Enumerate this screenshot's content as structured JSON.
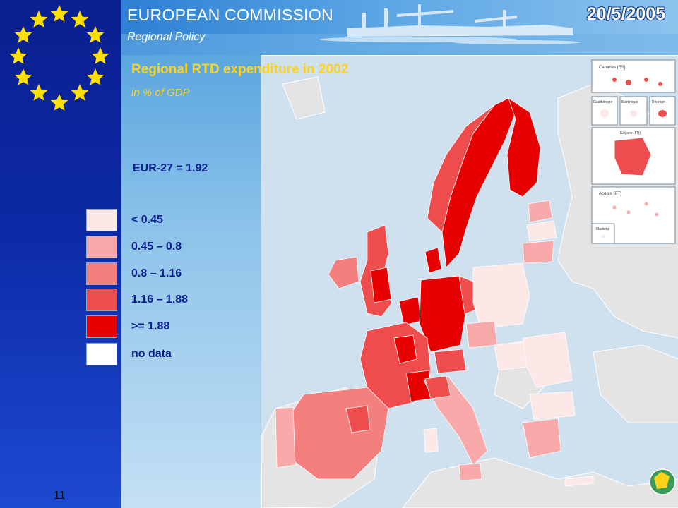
{
  "header": {
    "organization": "EUROPEAN COMMISSION",
    "department": "Regional Policy",
    "date": "20/5/2005"
  },
  "map": {
    "title": "Regional RTD expenditure in 2002",
    "subtitle": "in % of GDP",
    "average_label": "EUR-27 = 1.92",
    "legend": [
      {
        "label": "< 0.45",
        "color": "#fde8e8"
      },
      {
        "label": "0.45 – 0.8",
        "color": "#f8a9a9"
      },
      {
        "label": "0.8 – 1.16",
        "color": "#f47f7f"
      },
      {
        "label": "1.16 – 1.88",
        "color": "#ef4d4d"
      },
      {
        "label": ">= 1.88",
        "color": "#e60000"
      },
      {
        "label": "no data",
        "color": "#ffffff"
      }
    ],
    "insets": {
      "canarias": "Canarias (ES)",
      "guadeloupe": "Guadeloupe",
      "martinique": "Martinique",
      "reunion": "Réunion",
      "guyane": "Guyane (FR)",
      "acores": "Açores (PT)",
      "madeira": "Madeira"
    },
    "colors": {
      "sea": "#cfe0ef",
      "non_eu_land": "#e4e4e4",
      "border": "#ffffff"
    }
  },
  "footer": {
    "slide_number": "11"
  }
}
